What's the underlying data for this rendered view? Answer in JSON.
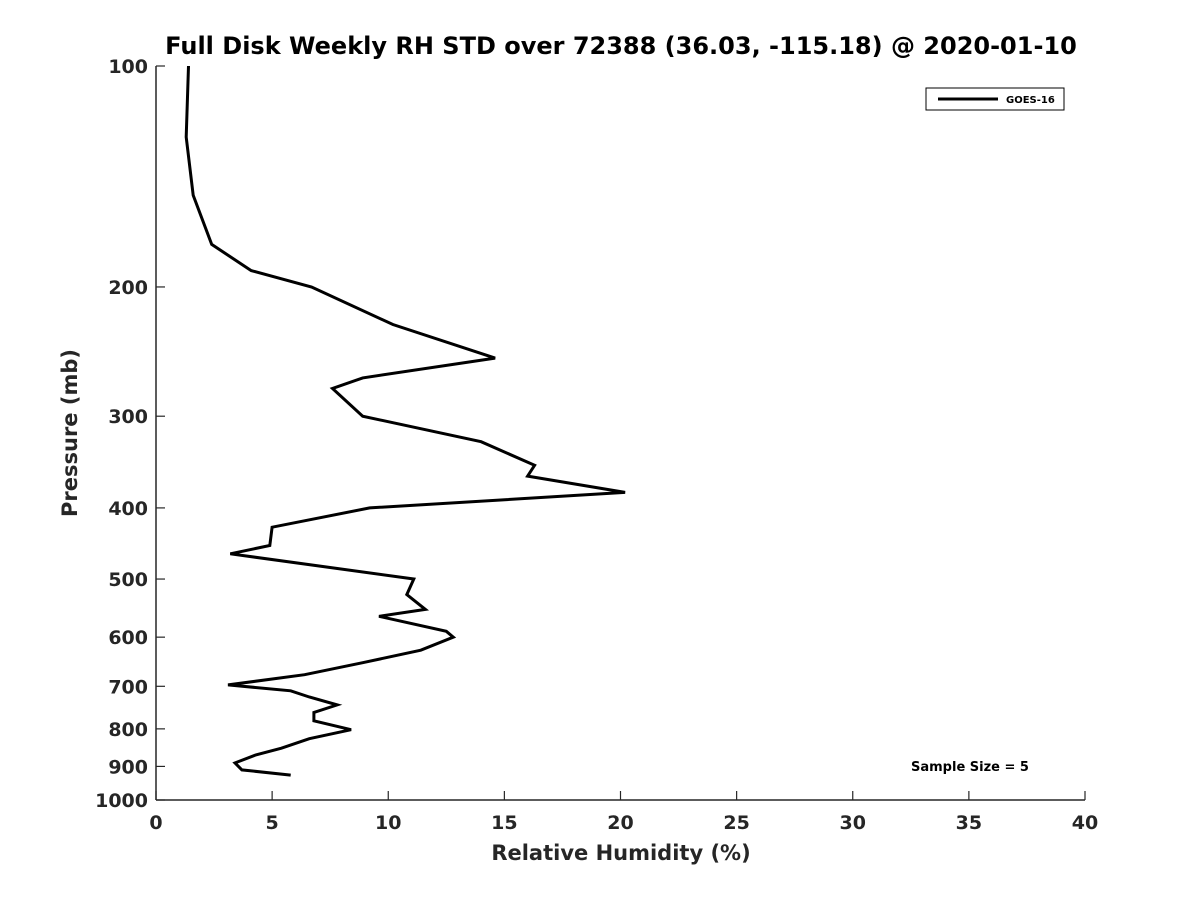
{
  "chart_data": {
    "type": "line",
    "title": "Full Disk Weekly RH STD over 72388 (36.03, -115.18) @ 2020-01-10",
    "xlabel": "Relative Humidity (%)",
    "ylabel": "Pressure (mb)",
    "xlim": [
      0,
      40
    ],
    "ylim": [
      100,
      1000
    ],
    "y_scale": "log",
    "y_reversed": true,
    "x_ticks": [
      "0",
      "5",
      "10",
      "15",
      "20",
      "25",
      "30",
      "35",
      "40"
    ],
    "y_ticks": [
      "100",
      "200",
      "300",
      "400",
      "500",
      "600",
      "700",
      "800",
      "900",
      "1000"
    ],
    "grid": false,
    "legend_position": "top-right",
    "series": [
      {
        "name": "GOES-16",
        "color": "#000000",
        "points": [
          [
            1.4,
            100
          ],
          [
            1.3,
            125
          ],
          [
            1.6,
            150
          ],
          [
            2.4,
            175
          ],
          [
            4.1,
            190
          ],
          [
            6.7,
            200
          ],
          [
            10.2,
            225
          ],
          [
            14.6,
            250
          ],
          [
            8.9,
            266
          ],
          [
            7.6,
            275
          ],
          [
            8.9,
            300
          ],
          [
            14.0,
            325
          ],
          [
            16.3,
            350
          ],
          [
            16.0,
            362
          ],
          [
            20.2,
            381
          ],
          [
            9.2,
            400
          ],
          [
            5.0,
            425
          ],
          [
            4.9,
            450
          ],
          [
            3.2,
            462
          ],
          [
            11.1,
            500
          ],
          [
            10.8,
            525
          ],
          [
            11.6,
            550
          ],
          [
            9.6,
            562
          ],
          [
            12.5,
            589
          ],
          [
            12.8,
            600
          ],
          [
            11.4,
            625
          ],
          [
            8.9,
            650
          ],
          [
            6.4,
            675
          ],
          [
            3.1,
            697
          ],
          [
            5.8,
            710
          ],
          [
            6.6,
            724
          ],
          [
            7.8,
            742
          ],
          [
            6.8,
            760
          ],
          [
            6.8,
            780
          ],
          [
            8.4,
            802
          ],
          [
            6.6,
            825
          ],
          [
            5.4,
            850
          ],
          [
            4.3,
            868
          ],
          [
            3.4,
            890
          ],
          [
            3.7,
            910
          ],
          [
            5.8,
            925
          ]
        ]
      }
    ],
    "annotations": [
      "Sample Size = 5"
    ]
  }
}
